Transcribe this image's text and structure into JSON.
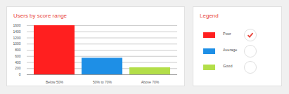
{
  "chart_data": {
    "type": "bar",
    "title": "Users by score range",
    "categories": [
      "Below 50%",
      "50% to 70%",
      "Above 70%"
    ],
    "series": [
      {
        "name": "Poor",
        "color": "#ff1f1f",
        "values": [
          1600,
          null,
          null
        ]
      },
      {
        "name": "Average",
        "color": "#1e8fe6",
        "values": [
          null,
          540,
          null
        ]
      },
      {
        "name": "Good",
        "color": "#b3de49",
        "values": [
          null,
          null,
          230
        ]
      }
    ],
    "legend_title": "Legend",
    "legend": "right",
    "ylim": [
      0,
      1600
    ],
    "yticks": [
      0,
      200,
      400,
      600,
      800,
      1000,
      1200,
      1400,
      1600
    ],
    "grid": true
  }
}
